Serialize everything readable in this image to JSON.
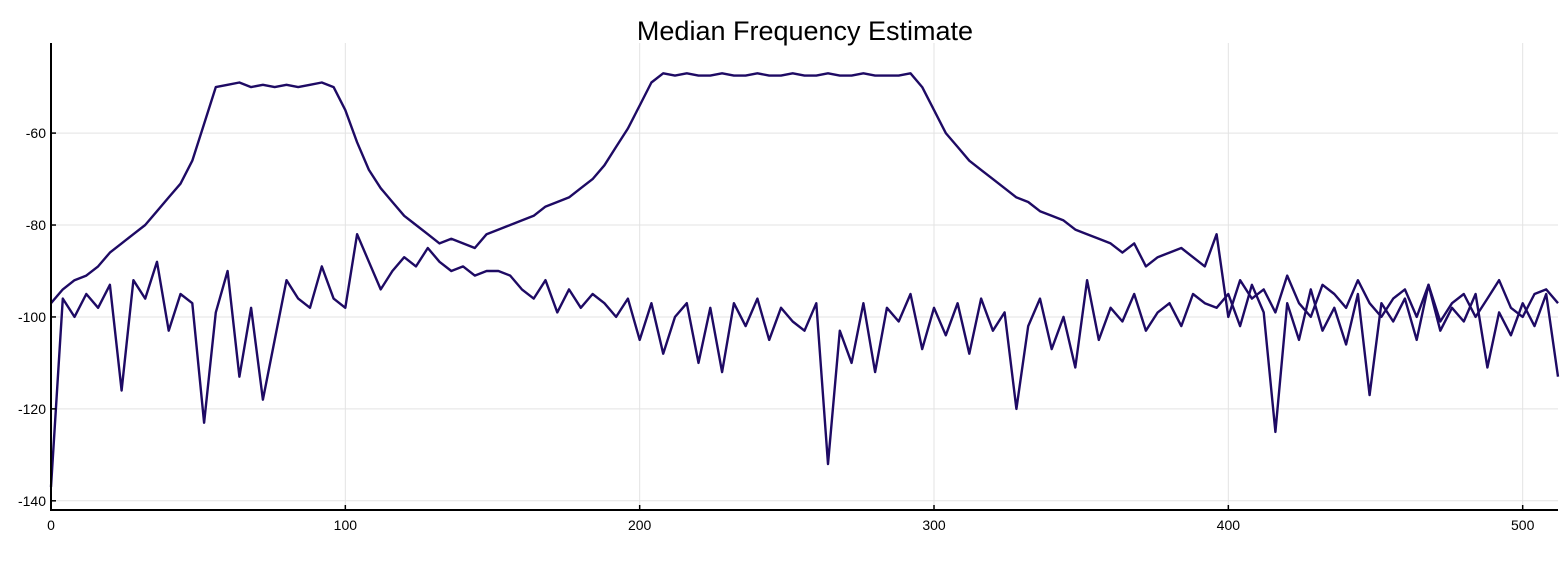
{
  "chart_data": {
    "type": "line",
    "title": "Median Frequency Estimate",
    "xlabel": "",
    "ylabel": "",
    "xlim": [
      0,
      512
    ],
    "ylim": [
      -142,
      -40.4
    ],
    "xticks": [
      0,
      100,
      200,
      300,
      400,
      500
    ],
    "yticks": [
      -60,
      -80,
      -100,
      -120,
      -140
    ],
    "grid": true,
    "legend": "none",
    "line_color": "#1e0a64",
    "x": [
      0,
      4,
      8,
      12,
      16,
      20,
      24,
      28,
      32,
      36,
      40,
      44,
      48,
      52,
      56,
      60,
      64,
      68,
      72,
      76,
      80,
      84,
      88,
      92,
      96,
      100,
      104,
      108,
      112,
      116,
      120,
      124,
      128,
      132,
      136,
      140,
      144,
      148,
      152,
      156,
      160,
      164,
      168,
      172,
      176,
      180,
      184,
      188,
      192,
      196,
      200,
      204,
      208,
      212,
      216,
      220,
      224,
      228,
      232,
      236,
      240,
      244,
      248,
      252,
      256,
      260,
      264,
      268,
      272,
      276,
      280,
      284,
      288,
      292,
      296,
      300,
      304,
      308,
      312,
      316,
      320,
      324,
      328,
      332,
      336,
      340,
      344,
      348,
      352,
      356,
      360,
      364,
      368,
      372,
      376,
      380,
      384,
      388,
      392,
      396,
      400,
      404,
      408,
      412,
      416,
      420,
      424,
      428,
      432,
      436,
      440,
      444,
      448,
      452,
      456,
      460,
      464,
      468,
      472,
      476,
      480,
      484,
      488,
      492,
      496,
      500,
      504,
      508,
      512
    ],
    "series": [
      {
        "values": [
          -97,
          -94,
          -92,
          -91,
          -89,
          -86,
          -84,
          -82,
          -80,
          -77,
          -74,
          -71,
          -66,
          -58,
          -50,
          -49.5,
          -49,
          -50,
          -49.5,
          -50,
          -49.5,
          -50,
          -49.5,
          -49,
          -50,
          -55,
          -62,
          -68,
          -72,
          -75,
          -78,
          -80,
          -82,
          -84,
          -83,
          -84,
          -85,
          -82,
          -81,
          -80,
          -79,
          -78,
          -76,
          -75,
          -74,
          -72,
          -70,
          -67,
          -63,
          -59,
          -54,
          -49,
          -47,
          -47.5,
          -47,
          -47.5,
          -47.5,
          -47,
          -47.5,
          -47.5,
          -47,
          -47.5,
          -47.5,
          -47,
          -47.5,
          -47.5,
          -47,
          -47.5,
          -47.5,
          -47,
          -47.5,
          -47.5,
          -47.5,
          -47,
          -50,
          -55,
          -60,
          -63,
          -66,
          -68,
          -70,
          -72,
          -74,
          -75,
          -77,
          -78,
          -79,
          -81,
          -82,
          -83,
          -84,
          -86,
          -84,
          -89,
          -87,
          -86,
          -85,
          -87,
          -89,
          -82,
          -100,
          -92,
          -96,
          -94,
          -99,
          -91,
          -97,
          -100,
          -93,
          -95,
          -98,
          -92,
          -97,
          -100,
          -96,
          -94,
          -100,
          -93,
          -101,
          -97,
          -95,
          -100,
          -96,
          -92,
          -98,
          -100,
          -95,
          -94,
          -97
        ]
      },
      {
        "values": [
          -137,
          -96,
          -100,
          -95,
          -98,
          -93,
          -116,
          -92,
          -96,
          -88,
          -103,
          -95,
          -97,
          -123,
          -99,
          -90,
          -113,
          -98,
          -118,
          -105,
          -92,
          -96,
          -98,
          -89,
          -96,
          -98,
          -82,
          -88,
          -94,
          -90,
          -87,
          -89,
          -85,
          -88,
          -90,
          -89,
          -91,
          -90,
          -90,
          -91,
          -94,
          -96,
          -92,
          -99,
          -94,
          -98,
          -95,
          -97,
          -100,
          -96,
          -105,
          -97,
          -108,
          -100,
          -97,
          -110,
          -98,
          -112,
          -97,
          -102,
          -96,
          -105,
          -98,
          -101,
          -103,
          -97,
          -132,
          -103,
          -110,
          -97,
          -112,
          -98,
          -101,
          -95,
          -107,
          -98,
          -104,
          -97,
          -108,
          -96,
          -103,
          -99,
          -120,
          -102,
          -96,
          -107,
          -100,
          -111,
          -92,
          -105,
          -98,
          -101,
          -95,
          -103,
          -99,
          -97,
          -102,
          -95,
          -97,
          -98,
          -95,
          -102,
          -93,
          -99,
          -125,
          -97,
          -105,
          -94,
          -103,
          -98,
          -106,
          -95,
          -117,
          -97,
          -101,
          -96,
          -105,
          -93,
          -103,
          -98,
          -101,
          -95,
          -111,
          -99,
          -104,
          -97,
          -102,
          -95,
          -113
        ]
      }
    ]
  }
}
